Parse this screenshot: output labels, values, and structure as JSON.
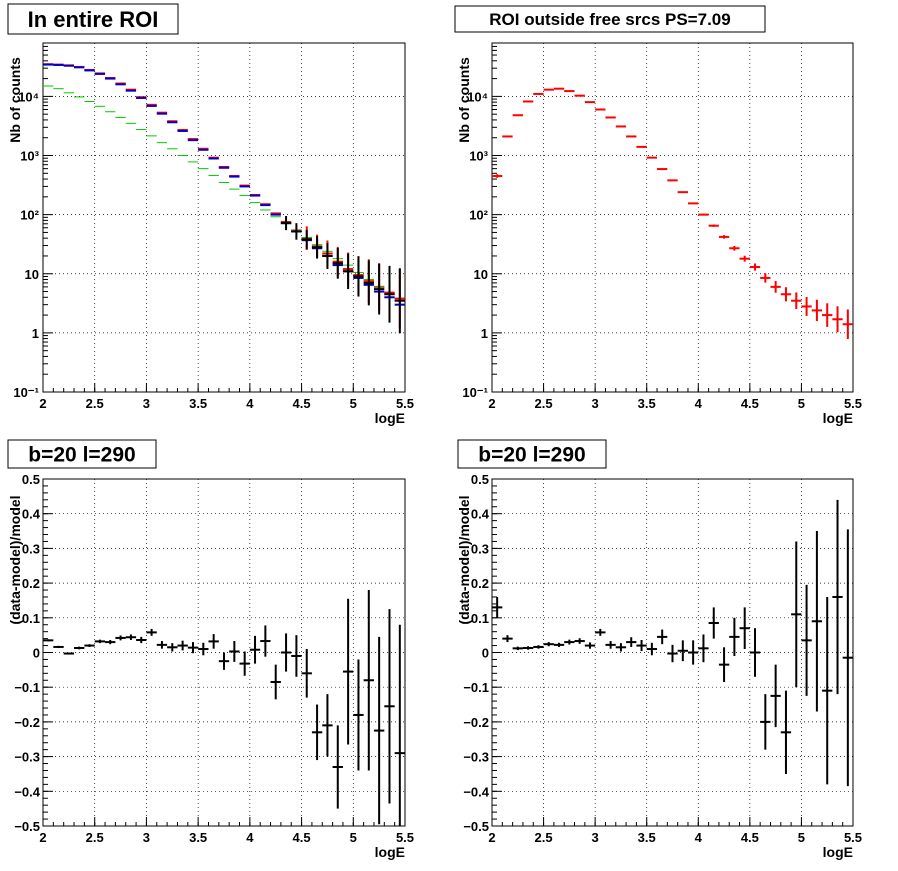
{
  "chart_data": [
    {
      "type": "scatter",
      "title": "In entire ROI",
      "xlabel": "logE",
      "ylabel": "Nb of counts",
      "xlim": [
        2,
        5.5
      ],
      "ylim": [
        0.1,
        80000
      ],
      "yscale": "log",
      "grid": true,
      "x_ticks": [
        "2",
        "2.5",
        "3",
        "3.5",
        "4",
        "4.5",
        "5",
        "5.5"
      ],
      "y_ticks": [
        "10⁻¹",
        "1",
        "10",
        "10²",
        "10³",
        "10⁴"
      ],
      "series": [
        {
          "color": "#ff0000",
          "x": [
            2.05,
            2.15,
            2.25,
            2.35,
            2.45,
            2.55,
            2.65,
            2.75,
            2.85,
            2.95,
            3.05,
            3.15,
            3.25,
            3.35,
            3.45,
            3.55,
            3.65,
            3.75,
            3.85,
            3.95,
            4.05,
            4.15,
            4.25,
            4.35,
            4.45,
            4.55,
            4.65,
            4.75,
            4.85,
            4.95,
            5.05,
            5.15,
            5.25,
            5.35,
            5.45
          ],
          "y": [
            35000,
            34500,
            33500,
            31500,
            28000,
            24500,
            20500,
            16500,
            13000,
            9700,
            7200,
            5300,
            3800,
            2700,
            1900,
            1300,
            920,
            640,
            450,
            310,
            215,
            150,
            105,
            75,
            54,
            40,
            29,
            22,
            16,
            12,
            9.5,
            7.5,
            6.0,
            4.8,
            3.8
          ],
          "yerr": [
            0,
            0,
            0,
            0,
            0,
            0,
            0,
            0,
            0,
            0,
            0,
            0,
            0,
            0,
            0,
            0,
            0,
            0,
            0,
            0,
            0,
            0,
            0,
            0,
            0,
            0.2,
            0.2,
            0.22,
            0.25,
            0.28,
            0.32,
            0.37,
            0.4,
            0.45,
            0.5
          ]
        },
        {
          "color": "#0000cc",
          "x": [
            2.05,
            2.15,
            2.25,
            2.35,
            2.45,
            2.55,
            2.65,
            2.75,
            2.85,
            2.95,
            3.05,
            3.15,
            3.25,
            3.35,
            3.45,
            3.55,
            3.65,
            3.75,
            3.85,
            3.95,
            4.05,
            4.15,
            4.25,
            4.35,
            4.45,
            4.55,
            4.65,
            4.75,
            4.85,
            4.95,
            5.05,
            5.15,
            5.25,
            5.35,
            5.45
          ],
          "y": [
            34500,
            34000,
            33000,
            31000,
            27500,
            24000,
            20000,
            16000,
            12500,
            9400,
            6900,
            5100,
            3650,
            2600,
            1820,
            1250,
            890,
            620,
            440,
            300,
            210,
            145,
            100,
            72,
            52,
            37,
            27,
            20,
            14,
            11,
            8.5,
            6.5,
            5.0,
            4.0,
            3.0
          ],
          "yerr": [
            0,
            0,
            0,
            0,
            0,
            0,
            0,
            0,
            0,
            0,
            0,
            0,
            0,
            0,
            0,
            0,
            0,
            0,
            0,
            0,
            0,
            0,
            0,
            0,
            0,
            0,
            0,
            0,
            0,
            0,
            0,
            0,
            0,
            0,
            0
          ]
        },
        {
          "color": "#00cc00",
          "x": [
            2.05,
            2.15,
            2.25,
            2.35,
            2.45,
            2.55,
            2.65,
            2.75,
            2.85,
            2.95,
            3.05,
            3.15,
            3.25,
            3.35,
            3.45,
            3.55,
            3.65,
            3.75,
            3.85,
            3.95,
            4.05,
            4.15,
            4.25,
            4.35,
            4.45,
            4.55,
            4.65,
            4.75,
            4.85,
            4.95,
            5.05,
            5.15,
            5.25,
            5.35,
            5.45
          ],
          "y": [
            15000,
            13500,
            11500,
            9800,
            8200,
            6800,
            5500,
            4400,
            3500,
            2750,
            2150,
            1650,
            1300,
            1000,
            780,
            600,
            460,
            350,
            270,
            210,
            160,
            120,
            92,
            70,
            54,
            41,
            31,
            24,
            18,
            14,
            10.5,
            8,
            6,
            4.5,
            3.5
          ],
          "yerr": [
            0,
            0,
            0,
            0,
            0,
            0,
            0,
            0,
            0,
            0,
            0,
            0,
            0,
            0,
            0,
            0,
            0,
            0,
            0,
            0,
            0,
            0,
            0,
            0,
            0,
            0,
            0,
            0,
            0,
            0,
            0,
            0,
            0,
            0,
            0
          ]
        },
        {
          "color": "#000000",
          "x": [
            4.35,
            4.45,
            4.55,
            4.65,
            4.75,
            4.85,
            4.95,
            5.05,
            5.15,
            5.25,
            5.35,
            5.45
          ],
          "y": [
            72,
            52,
            38,
            28,
            20,
            15,
            11,
            9,
            7,
            5.5,
            4.5,
            3.5
          ],
          "yerr": [
            0.12,
            0.14,
            0.16,
            0.19,
            0.22,
            0.26,
            0.3,
            0.34,
            0.38,
            0.43,
            0.48,
            0.55
          ]
        }
      ]
    },
    {
      "type": "scatter",
      "title": "ROI outside free srcs PS=7.09",
      "xlabel": "logE",
      "ylabel": "Nb of counts",
      "xlim": [
        2,
        5.5
      ],
      "ylim": [
        0.1,
        80000
      ],
      "yscale": "log",
      "grid": true,
      "x_ticks": [
        "2",
        "2.5",
        "3",
        "3.5",
        "4",
        "4.5",
        "5",
        "5.5"
      ],
      "y_ticks": [
        "10⁻¹",
        "1",
        "10",
        "10²",
        "10³",
        "10⁴"
      ],
      "series": [
        {
          "color": "#ff0000",
          "x": [
            2.05,
            2.15,
            2.25,
            2.35,
            2.45,
            2.55,
            2.65,
            2.75,
            2.85,
            2.95,
            3.05,
            3.15,
            3.25,
            3.35,
            3.45,
            3.55,
            3.65,
            3.75,
            3.85,
            3.95,
            4.05,
            4.15,
            4.25,
            4.35,
            4.45,
            4.55,
            4.65,
            4.75,
            4.85,
            4.95,
            5.05,
            5.15,
            5.25,
            5.35,
            5.45
          ],
          "y": [
            450,
            2100,
            4800,
            8200,
            11000,
            13000,
            13500,
            12300,
            10300,
            8000,
            6000,
            4400,
            3100,
            2100,
            1400,
            920,
            590,
            380,
            240,
            155,
            100,
            65,
            42,
            27,
            18,
            13,
            8.5,
            6.0,
            4.5,
            3.5,
            2.8,
            2.4,
            2.0,
            1.7,
            1.4
          ],
          "yerr": [
            0.03,
            0,
            0,
            0,
            0,
            0,
            0,
            0,
            0,
            0,
            0,
            0,
            0,
            0,
            0,
            0,
            0,
            0,
            0,
            0.01,
            0.015,
            0.02,
            0.03,
            0.04,
            0.05,
            0.06,
            0.08,
            0.1,
            0.12,
            0.14,
            0.16,
            0.18,
            0.2,
            0.22,
            0.25
          ]
        }
      ]
    },
    {
      "type": "scatter",
      "title": "b=20 l=290",
      "xlabel": "logE",
      "ylabel": "(data-model)/model",
      "xlim": [
        2,
        5.5
      ],
      "ylim": [
        -0.5,
        0.5
      ],
      "grid": true,
      "x_ticks": [
        "2",
        "2.5",
        "3",
        "3.5",
        "4",
        "4.5",
        "5",
        "5.5"
      ],
      "y_ticks": [
        "−0.5",
        "−0.4",
        "−0.3",
        "−0.2",
        "−0.1",
        "0",
        "0.1",
        "0.2",
        "0.3",
        "0.4",
        "0.5"
      ],
      "series": [
        {
          "color": "#000000",
          "x": [
            2.05,
            2.15,
            2.25,
            2.35,
            2.45,
            2.55,
            2.65,
            2.75,
            2.85,
            2.95,
            3.05,
            3.15,
            3.25,
            3.35,
            3.45,
            3.55,
            3.65,
            3.75,
            3.85,
            3.95,
            4.05,
            4.15,
            4.25,
            4.35,
            4.45,
            4.55,
            4.65,
            4.75,
            4.85,
            4.95,
            5.05,
            5.15,
            5.25,
            5.35,
            5.45
          ],
          "y": [
            0.035,
            0.016,
            -0.003,
            0.013,
            0.02,
            0.032,
            0.03,
            0.042,
            0.044,
            0.036,
            0.058,
            0.022,
            0.015,
            0.02,
            0.014,
            0.01,
            0.032,
            -0.025,
            0.003,
            -0.032,
            0.008,
            0.033,
            -0.085,
            0.0,
            -0.01,
            -0.06,
            -0.23,
            -0.21,
            -0.33,
            -0.055,
            -0.18,
            -0.08,
            -0.225,
            -0.155,
            -0.29
          ],
          "yerr": [
            0.003,
            0.003,
            0.003,
            0.004,
            0.004,
            0.005,
            0.006,
            0.007,
            0.008,
            0.009,
            0.01,
            0.011,
            0.012,
            0.014,
            0.016,
            0.018,
            0.021,
            0.025,
            0.03,
            0.035,
            0.04,
            0.045,
            0.05,
            0.055,
            0.06,
            0.07,
            0.08,
            0.09,
            0.12,
            0.21,
            0.16,
            0.26,
            0.27,
            0.28,
            0.37
          ]
        }
      ]
    },
    {
      "type": "scatter",
      "title": "b=20 l=290",
      "xlabel": "logE",
      "ylabel": "(data-model)/model",
      "xlim": [
        2,
        5.5
      ],
      "ylim": [
        -0.5,
        0.5
      ],
      "grid": true,
      "x_ticks": [
        "2",
        "2.5",
        "3",
        "3.5",
        "4",
        "4.5",
        "5",
        "5.5"
      ],
      "y_ticks": [
        "−0.5",
        "−0.4",
        "−0.3",
        "−0.2",
        "−0.1",
        "0",
        "0.1",
        "0.2",
        "0.3",
        "0.4",
        "0.5"
      ],
      "series": [
        {
          "color": "#000000",
          "x": [
            2.05,
            2.15,
            2.25,
            2.35,
            2.45,
            2.55,
            2.65,
            2.75,
            2.85,
            2.95,
            3.05,
            3.15,
            3.25,
            3.35,
            3.45,
            3.55,
            3.65,
            3.75,
            3.85,
            3.95,
            4.05,
            4.15,
            4.25,
            4.35,
            4.45,
            4.55,
            4.65,
            4.75,
            4.85,
            4.95,
            5.05,
            5.15,
            5.25,
            5.35,
            5.45
          ],
          "y": [
            0.13,
            0.04,
            0.012,
            0.013,
            0.016,
            0.024,
            0.022,
            0.03,
            0.033,
            0.02,
            0.058,
            0.022,
            0.015,
            0.03,
            0.02,
            0.01,
            0.045,
            -0.003,
            0.005,
            0.0,
            0.012,
            0.085,
            -0.035,
            0.045,
            0.07,
            0.0,
            -0.2,
            -0.125,
            -0.23,
            0.11,
            0.035,
            0.09,
            -0.11,
            0.16,
            -0.015
          ],
          "yerr": [
            0.03,
            0.01,
            0.005,
            0.005,
            0.005,
            0.006,
            0.006,
            0.007,
            0.008,
            0.009,
            0.01,
            0.011,
            0.012,
            0.014,
            0.016,
            0.018,
            0.021,
            0.025,
            0.03,
            0.035,
            0.04,
            0.045,
            0.05,
            0.055,
            0.06,
            0.07,
            0.08,
            0.09,
            0.12,
            0.21,
            0.16,
            0.26,
            0.27,
            0.28,
            0.37
          ]
        }
      ]
    }
  ]
}
